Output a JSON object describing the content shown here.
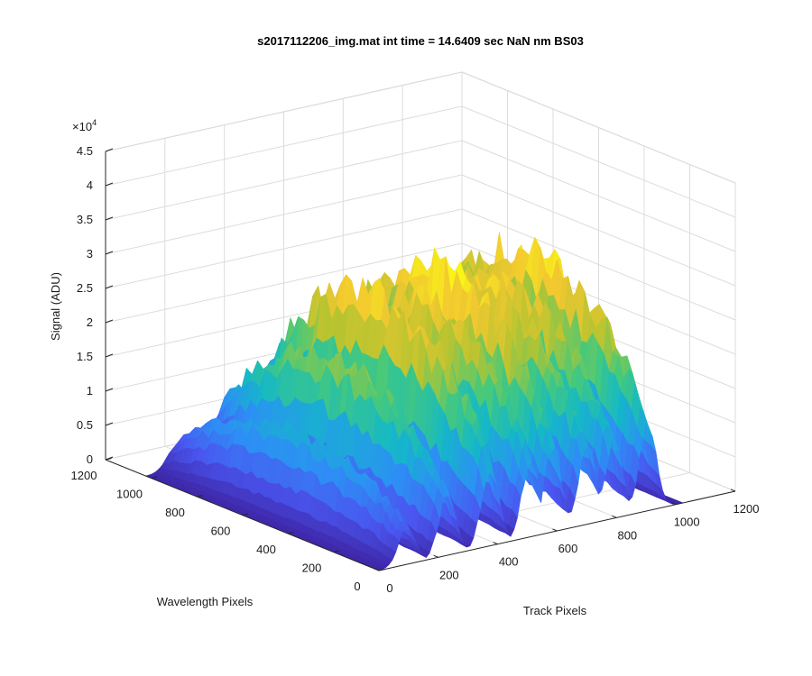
{
  "chart_data": {
    "type": "surface3d",
    "title": "s2017112206_img.mat int time = 14.6409 sec  NaN nm BS03",
    "xlabel": "Track Pixels",
    "ylabel": "Wavelength Pixels",
    "zlabel": "Signal (ADU)",
    "xlim": [
      0,
      1200
    ],
    "ylim": [
      0,
      1200
    ],
    "zlim": [
      0,
      45000
    ],
    "x_ticks": [
      "0",
      "200",
      "400",
      "600",
      "800",
      "1000",
      "1200"
    ],
    "y_ticks": [
      "0",
      "200",
      "400",
      "600",
      "800",
      "1000",
      "1200"
    ],
    "z_ticks": [
      "0",
      "0.5",
      "1",
      "1.5",
      "2",
      "2.5",
      "3",
      "3.5",
      "4",
      "4.5"
    ],
    "z_multiplier_base": "×10",
    "z_multiplier_exp": "4",
    "grid": true,
    "colormap": [
      "#3e26a8",
      "#4a56f0",
      "#2d8ff5",
      "#14b8c8",
      "#45c97c",
      "#b8c430",
      "#f2c830",
      "#f9fb15"
    ],
    "surface_extent": {
      "track": [
        0,
        1024
      ],
      "wavelength": [
        0,
        1024
      ]
    },
    "tracks": [
      {
        "center": 95,
        "peak": 13000
      },
      {
        "center": 230,
        "peak": 22000
      },
      {
        "center": 375,
        "peak": 30000
      },
      {
        "center": 510,
        "peak": 28000
      },
      {
        "center": 585,
        "peak": 32000
      },
      {
        "center": 700,
        "peak": 29000
      },
      {
        "center": 790,
        "peak": 28000
      },
      {
        "center": 905,
        "peak": 31500
      }
    ]
  }
}
